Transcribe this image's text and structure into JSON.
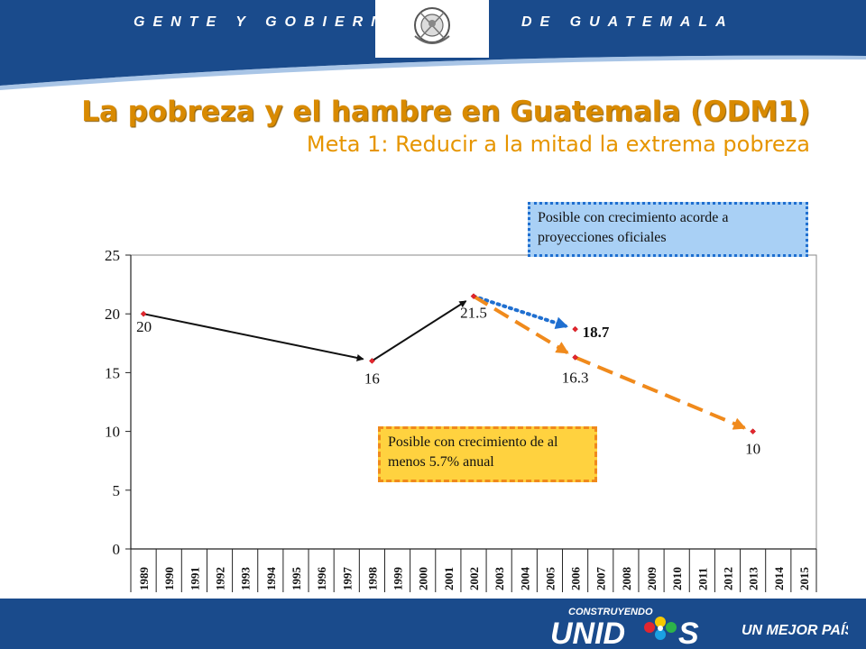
{
  "header": {
    "left_text": "GENTE Y GOBIERNO",
    "right_text": "DE GUATEMALA",
    "colors": {
      "band": "#1a4b8c",
      "accent": "#ffffff"
    }
  },
  "title": "La pobreza y el hambre en Guatemala (ODM1)",
  "subtitle": "Meta 1: Reducir a la mitad la extrema pobreza",
  "chart_data": {
    "type": "scatter",
    "title": "",
    "xlabel": "",
    "ylabel": "",
    "x_categories": [
      "1989",
      "1990",
      "1991",
      "1992",
      "1993",
      "1994",
      "1995",
      "1996",
      "1997",
      "1998",
      "1999",
      "2000",
      "2001",
      "2002",
      "2003",
      "2004",
      "2005",
      "2006",
      "2007",
      "2008",
      "2009",
      "2010",
      "2011",
      "2012",
      "2013",
      "2014",
      "2015"
    ],
    "ylim": [
      0,
      25
    ],
    "yticks": [
      0,
      5,
      10,
      15,
      20,
      25
    ],
    "grid": false,
    "points": [
      {
        "x": "1989",
        "y": 20,
        "label": "20"
      },
      {
        "x": "1998",
        "y": 16,
        "label": "16"
      },
      {
        "x": "2002",
        "y": 21.5,
        "label": "21.5"
      },
      {
        "x": "2006",
        "y": 16.3,
        "label": "16.3"
      },
      {
        "x": "2006",
        "y": 18.7,
        "label": "18.7"
      },
      {
        "x": "2013",
        "y": 10,
        "label": "10"
      }
    ],
    "arrows": [
      {
        "from": [
          "1989",
          20
        ],
        "to": [
          "1998",
          16
        ],
        "style": "solid",
        "color": "#111111"
      },
      {
        "from": [
          "1998",
          16
        ],
        "to": [
          "2002",
          21.5
        ],
        "style": "solid",
        "color": "#111111"
      },
      {
        "from": [
          "2002",
          21.5
        ],
        "to": [
          "2006",
          18.7
        ],
        "style": "dotted",
        "color": "#1f6fd0"
      },
      {
        "from": [
          "2002",
          21.5
        ],
        "to": [
          "2006",
          16.3
        ],
        "style": "dashed",
        "color": "#f08a1c"
      },
      {
        "from": [
          "2006",
          16.3
        ],
        "to": [
          "2013",
          10
        ],
        "style": "dashed",
        "color": "#f08a1c"
      }
    ],
    "annotations": [
      "Posible con crecimiento acorde a proyecciones oficiales",
      "Posible con crecimiento de al menos 5.7% anual"
    ]
  },
  "notes": {
    "blue": "Posible con crecimiento acorde a proyecciones oficiales",
    "orange": "Posible con crecimiento de al menos 5.7% anual"
  },
  "footer": {
    "brand_top": "CONSTRUYENDO",
    "brand_main": "UNIDOS",
    "tagline": "UN MEJOR PAÍS"
  }
}
